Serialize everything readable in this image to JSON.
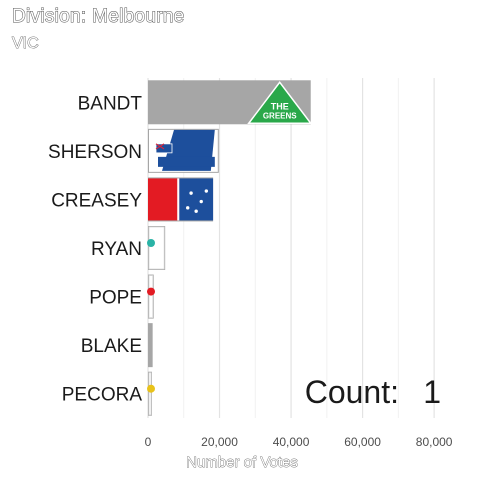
{
  "chart_data": {
    "type": "bar",
    "orientation": "horizontal",
    "title": "Division: Melbourne",
    "subtitle": "VIC",
    "xlabel": "Number of Votes",
    "ylabel": "",
    "categories": [
      "BANDT",
      "SHERSON",
      "CREASEY",
      "RYAN",
      "POPE",
      "BLAKE",
      "PECORA"
    ],
    "values": [
      45500,
      19800,
      18200,
      4800,
      1600,
      1300,
      1100
    ],
    "xlim": [
      0,
      85000
    ],
    "xticks": [
      0,
      20000,
      40000,
      60000,
      80000
    ],
    "xtick_labels": [
      "0",
      "20,000",
      "40,000",
      "60,000",
      "80,000"
    ],
    "grid": true,
    "bar_color": "#a6a6a6",
    "logos": [
      "greens-logo",
      "liberal-logo",
      "labor-logo",
      "party-logo",
      "party-logo",
      "",
      "party-logo"
    ],
    "annotation_label": "Count:",
    "annotation_value": "1"
  }
}
